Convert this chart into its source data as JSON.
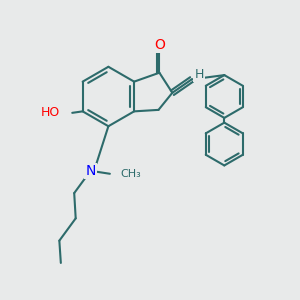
{
  "bg_color": "#e8eaea",
  "bond_color": "#2d6b6b",
  "bond_width": 1.5,
  "atom_colors": {
    "O": "#ff0000",
    "N": "#0000ff",
    "H": "#2d6b6b"
  },
  "font_size": 9
}
